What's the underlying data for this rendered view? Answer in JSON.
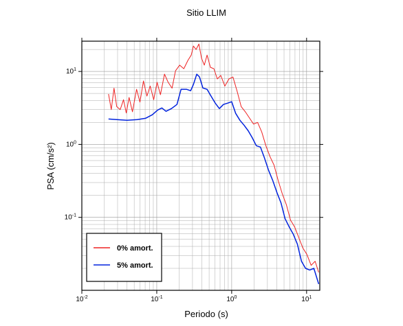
{
  "chart_data": {
    "type": "line",
    "title": "Sitio LLIM",
    "x_label": "Periodo (s)",
    "y_label": "PSA (cm/s²)",
    "xscale": "log",
    "yscale": "log",
    "grid": true,
    "minor_grid": true,
    "legend": "lower left",
    "xlim": [
      0.01,
      15
    ],
    "ylim": [
      0.01,
      26
    ],
    "xticks": [
      {
        "value": 0.01,
        "label": "10",
        "exponent": "-2"
      },
      {
        "value": 0.1,
        "label": "10",
        "exponent": "-1"
      },
      {
        "value": 1,
        "label": "10",
        "exponent": "0"
      },
      {
        "value": 10,
        "label": "10",
        "exponent": "1"
      }
    ],
    "yticks": [
      {
        "value": 0.1,
        "label": "10",
        "exponent": "-1"
      },
      {
        "value": 1,
        "label": "10",
        "exponent": "0"
      },
      {
        "value": 10,
        "label": "10",
        "exponent": "1"
      }
    ],
    "series": [
      {
        "name": "0% amort.",
        "color": "#ee2222",
        "width": 1,
        "x": [
          0.0227,
          0.0247,
          0.0269,
          0.0292,
          0.0325,
          0.036,
          0.0392,
          0.0427,
          0.0474,
          0.0538,
          0.0597,
          0.0664,
          0.0738,
          0.0818,
          0.091,
          0.101,
          0.112,
          0.127,
          0.142,
          0.16,
          0.178,
          0.202,
          0.23,
          0.261,
          0.289,
          0.308,
          0.335,
          0.365,
          0.396,
          0.431,
          0.469,
          0.521,
          0.579,
          0.643,
          0.715,
          0.811,
          0.919,
          1.04,
          1.18,
          1.34,
          1.52,
          1.73,
          1.96,
          2.22,
          2.52,
          2.86,
          3.25,
          3.68,
          4.18,
          4.74,
          5.38,
          6.1,
          6.92,
          7.85,
          8.91,
          10.1,
          11.5,
          13.0,
          14.5
        ],
        "values": [
          4.9,
          3.0,
          5.9,
          3.3,
          3.0,
          4.1,
          2.7,
          4.4,
          2.8,
          5.7,
          3.8,
          7.4,
          4.6,
          6.3,
          4.1,
          7.1,
          4.8,
          9.2,
          7.1,
          5.9,
          10.2,
          12.2,
          10.9,
          14.2,
          16.8,
          22.3,
          20.0,
          23.8,
          15.1,
          12.2,
          16.8,
          11.4,
          10.9,
          7.9,
          8.8,
          6.3,
          7.9,
          8.4,
          5.4,
          3.3,
          2.8,
          2.3,
          1.9,
          2.0,
          1.48,
          0.96,
          0.68,
          0.52,
          0.32,
          0.21,
          0.148,
          0.092,
          0.074,
          0.053,
          0.038,
          0.031,
          0.022,
          0.025,
          0.0176
        ]
      },
      {
        "name": "5% amort.",
        "color": "#0022dd",
        "width": 1.5,
        "x": [
          0.0227,
          0.0292,
          0.0401,
          0.055,
          0.0707,
          0.0872,
          0.103,
          0.117,
          0.133,
          0.157,
          0.186,
          0.211,
          0.249,
          0.283,
          0.308,
          0.342,
          0.372,
          0.413,
          0.469,
          0.532,
          0.604,
          0.685,
          0.777,
          0.881,
          1.0,
          1.13,
          1.29,
          1.46,
          1.66,
          1.88,
          2.13,
          2.42,
          2.74,
          3.11,
          3.53,
          4.01,
          4.55,
          5.16,
          5.85,
          6.64,
          7.53,
          8.55,
          9.69,
          11.0,
          12.5,
          14.5
        ],
        "values": [
          2.23,
          2.19,
          2.14,
          2.19,
          2.28,
          2.55,
          2.96,
          3.16,
          2.84,
          3.1,
          3.53,
          5.69,
          5.69,
          5.44,
          6.62,
          9.17,
          8.41,
          5.94,
          5.69,
          4.57,
          3.68,
          3.1,
          3.53,
          3.68,
          3.85,
          2.66,
          2.14,
          1.84,
          1.54,
          1.24,
          0.96,
          0.92,
          0.65,
          0.44,
          0.32,
          0.22,
          0.158,
          0.096,
          0.074,
          0.059,
          0.043,
          0.025,
          0.02,
          0.019,
          0.02,
          0.0122
        ]
      }
    ]
  }
}
